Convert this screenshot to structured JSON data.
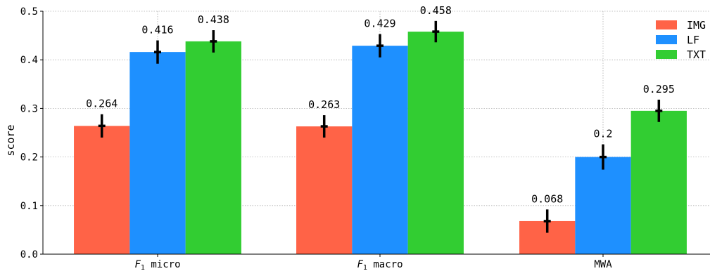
{
  "chart_data": {
    "type": "bar",
    "ylabel": "score",
    "ylim": [
      0,
      0.5
    ],
    "yticks": [
      "0.0",
      "0.1",
      "0.2",
      "0.3",
      "0.4",
      "0.5"
    ],
    "categories": [
      {
        "base": "F",
        "sub": "1",
        "rest": " micro"
      },
      {
        "base": "F",
        "sub": "1",
        "rest": " macro"
      },
      {
        "base": "MWA",
        "sub": "",
        "rest": ""
      }
    ],
    "series": [
      {
        "name": "IMG",
        "color": "#ff6347",
        "values": [
          0.264,
          0.263,
          0.068
        ],
        "labels": [
          "0.264",
          "0.263",
          "0.068"
        ],
        "err": [
          0.024,
          0.023,
          0.024
        ]
      },
      {
        "name": "LF",
        "color": "#1e90ff",
        "values": [
          0.416,
          0.429,
          0.2
        ],
        "labels": [
          "0.416",
          "0.429",
          "0.2"
        ],
        "err": [
          0.024,
          0.024,
          0.026
        ]
      },
      {
        "name": "TXT",
        "color": "#32cd32",
        "values": [
          0.438,
          0.458,
          0.295
        ],
        "labels": [
          "0.438",
          "0.458",
          "0.295"
        ],
        "err": [
          0.023,
          0.022,
          0.023
        ]
      }
    ],
    "grid": true,
    "legend": "top-right"
  }
}
